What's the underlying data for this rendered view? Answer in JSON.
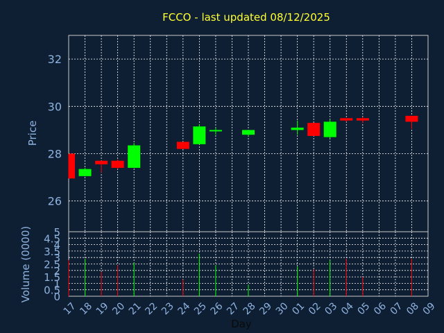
{
  "chart_data": {
    "type": "candlestick",
    "title": "FCCO - last updated 08/12/2025",
    "xlabel": "Day",
    "price_panel": {
      "ylabel": "Price",
      "ylim": [
        24.7,
        33
      ],
      "yticks": [
        26,
        28,
        30,
        32
      ]
    },
    "volume_panel": {
      "ylabel": "Volume (0000)",
      "ylim": [
        0,
        5
      ],
      "yticks": [
        "0",
        "0.5",
        "1",
        "1.5",
        "2",
        "2.5",
        "3",
        "3.5",
        "4",
        "4.5",
        "5"
      ]
    },
    "x_ticks": [
      "17",
      "18",
      "19",
      "20",
      "21",
      "22",
      "23",
      "24",
      "25",
      "26",
      "27",
      "28",
      "29",
      "30",
      "01",
      "02",
      "03",
      "04",
      "05",
      "06",
      "07",
      "08",
      "09"
    ],
    "colors": {
      "up": "#00ff00",
      "down": "#ff0000",
      "title": "#ffff33",
      "axis_text": "#8fb3e0",
      "background": "#0f1f33",
      "grid": "#ffffff"
    },
    "candles": [
      {
        "day": "17",
        "open": 28.0,
        "high": 28.0,
        "low": 26.95,
        "close": 26.95,
        "volume": 2.8
      },
      {
        "day": "18",
        "open": 27.05,
        "high": 27.4,
        "low": 27.05,
        "close": 27.35,
        "volume": 2.9
      },
      {
        "day": "19",
        "open": 27.7,
        "high": 27.7,
        "low": 27.2,
        "close": 27.55,
        "volume": 1.9
      },
      {
        "day": "20",
        "open": 27.7,
        "high": 27.75,
        "low": 27.35,
        "close": 27.4,
        "volume": 2.4
      },
      {
        "day": "21",
        "open": 27.4,
        "high": 28.45,
        "low": 27.4,
        "close": 28.35,
        "volume": 2.6
      },
      {
        "day": "24",
        "open": 28.5,
        "high": 28.5,
        "low": 28.2,
        "close": 28.2,
        "volume": 1.3
      },
      {
        "day": "25",
        "open": 28.4,
        "high": 29.25,
        "low": 28.4,
        "close": 29.15,
        "volume": 3.3
      },
      {
        "day": "26",
        "open": 29.0,
        "high": 29.1,
        "low": 28.8,
        "close": 29.0,
        "volume": 2.4
      },
      {
        "day": "28",
        "open": 28.8,
        "high": 29.0,
        "low": 28.75,
        "close": 29.0,
        "volume": 0.9
      },
      {
        "day": "01",
        "open": 29.0,
        "high": 29.4,
        "low": 28.8,
        "close": 29.1,
        "volume": 2.3
      },
      {
        "day": "02",
        "open": 29.3,
        "high": 29.3,
        "low": 28.75,
        "close": 28.75,
        "volume": 2.1
      },
      {
        "day": "03",
        "open": 28.7,
        "high": 29.45,
        "low": 28.65,
        "close": 29.35,
        "volume": 2.8
      },
      {
        "day": "04",
        "open": 29.5,
        "high": 29.5,
        "low": 29.35,
        "close": 29.4,
        "volume": 2.9
      },
      {
        "day": "05",
        "open": 29.5,
        "high": 29.55,
        "low": 29.3,
        "close": 29.4,
        "volume": 1.5
      },
      {
        "day": "08",
        "open": 29.6,
        "high": 29.6,
        "low": 29.05,
        "close": 29.35,
        "volume": 2.9
      }
    ]
  }
}
